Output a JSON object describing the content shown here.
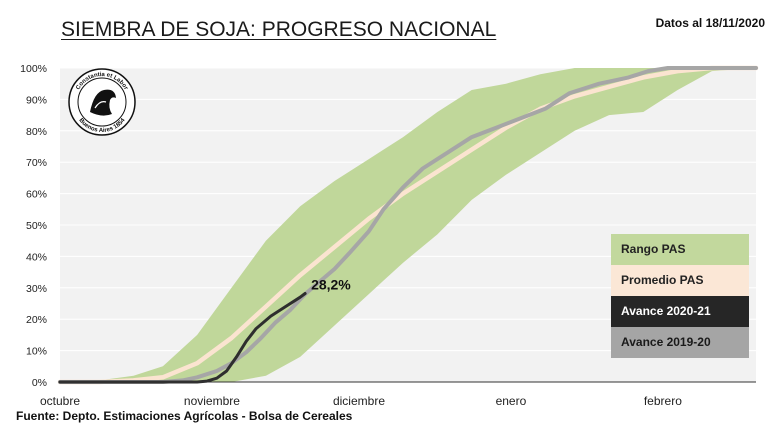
{
  "header": {
    "title": "SIEMBRA DE SOJA: PROGRESO NACIONAL",
    "date": "Datos al 18/11/2020"
  },
  "footer": {
    "source": "Fuente: Depto. Estimaciones Agrícolas - Bolsa de Cereales"
  },
  "logo": {
    "text_top": "Constantia et Labor",
    "text_bottom": "Buenos Aires 1854"
  },
  "chart_data": {
    "type": "area",
    "title": "SIEMBRA DE SOJA: PROGRESO NACIONAL",
    "x_unit": "days since October 1",
    "xlim": [
      0,
      142
    ],
    "ylim": [
      0,
      100
    ],
    "y_ticks": [
      "0%",
      "10%",
      "20%",
      "30%",
      "40%",
      "50%",
      "60%",
      "70%",
      "80%",
      "90%",
      "100%"
    ],
    "x_ticks": [
      {
        "label": "octubre",
        "x": 0
      },
      {
        "label": "noviembre",
        "x": 31
      },
      {
        "label": "diciembre",
        "x": 61
      },
      {
        "label": "enero",
        "x": 92
      },
      {
        "label": "febrero",
        "x": 123
      }
    ],
    "series": [
      {
        "name": "Rango PAS",
        "kind": "band",
        "color": "#c0d79a",
        "x": [
          0,
          8,
          15,
          21,
          28,
          35,
          42,
          49,
          56,
          63,
          70,
          77,
          84,
          91,
          98,
          105,
          112,
          119,
          126,
          133,
          142
        ],
        "low": [
          0,
          0,
          0,
          0,
          0,
          0,
          2,
          8,
          18,
          28,
          38,
          47,
          58,
          66,
          73,
          80,
          85,
          86,
          93,
          99,
          100
        ],
        "high": [
          0,
          0.5,
          2,
          5,
          15,
          30,
          45,
          56,
          64,
          71,
          78,
          86,
          93,
          95,
          98,
          100,
          100,
          100,
          100,
          100,
          100
        ]
      },
      {
        "name": "Promedio PAS",
        "kind": "line",
        "color": "#fbe4d0",
        "x": [
          0,
          8,
          15,
          21,
          28,
          35,
          42,
          49,
          56,
          63,
          70,
          77,
          84,
          91,
          98,
          105,
          112,
          119,
          126,
          133,
          142
        ],
        "values": [
          0,
          0,
          0.5,
          1.5,
          6,
          14,
          24,
          34,
          43,
          52,
          60,
          67,
          74,
          81,
          87,
          91,
          94,
          97,
          99,
          100,
          100
        ]
      },
      {
        "name": "Avance 2020-21",
        "kind": "line",
        "color": "#2e2e2e",
        "x": [
          0,
          20,
          28,
          30,
          32,
          34,
          36,
          38,
          40,
          43,
          46,
          49,
          50
        ],
        "values": [
          0,
          0,
          0,
          0.3,
          1.2,
          3.5,
          8,
          13,
          17,
          21,
          24,
          27,
          28.2
        ]
      },
      {
        "name": "Avance 2019-20",
        "kind": "line",
        "color": "#a6a6a6",
        "x": [
          0,
          21,
          25,
          28,
          32,
          35,
          38,
          41,
          44,
          47,
          50,
          53,
          56,
          59,
          63,
          66,
          70,
          74,
          79,
          84,
          89,
          94,
          99,
          104,
          110,
          116,
          120,
          124,
          130,
          136,
          142
        ],
        "values": [
          0,
          0,
          0.5,
          1.5,
          3.5,
          6,
          9.5,
          14,
          19,
          23,
          28,
          32,
          36,
          41,
          48,
          55,
          62,
          68,
          73,
          78,
          81,
          84,
          87,
          92,
          95,
          97,
          99,
          100,
          100,
          100,
          100
        ]
      }
    ],
    "annotation": {
      "text": "28,2%",
      "x": 50,
      "y": 28.2
    },
    "legend": {
      "placement": "right",
      "items": [
        {
          "label": "Rango PAS",
          "bg": "#c2d89d",
          "fg": "#222222"
        },
        {
          "label": "Promedio PAS",
          "bg": "#fbe7d6",
          "fg": "#222222"
        },
        {
          "label": "Avance 2020-21",
          "bg": "#262626",
          "fg": "#ffffff"
        },
        {
          "label": "Avance 2019-20",
          "bg": "#a5a5a5",
          "fg": "#1a1a1a"
        }
      ]
    }
  }
}
